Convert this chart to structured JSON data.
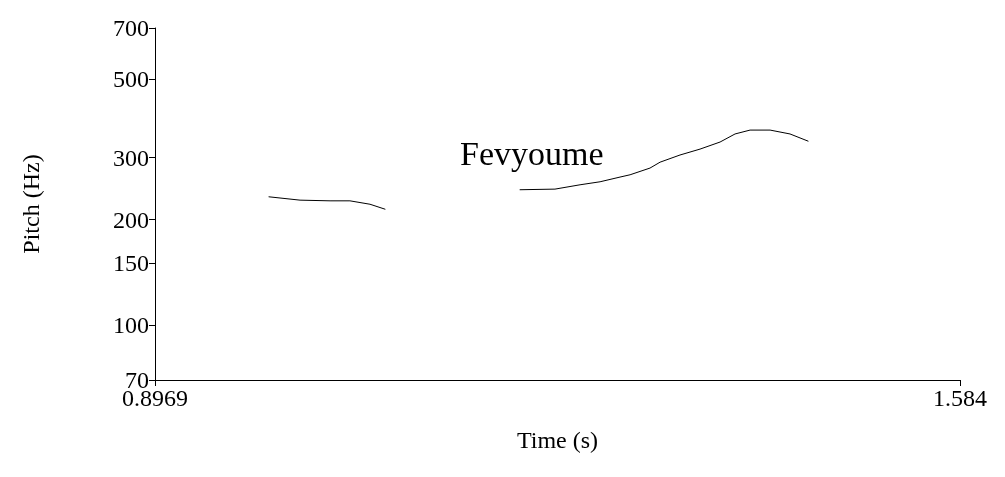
{
  "chart_data": {
    "type": "line",
    "xlabel": "Time (s)",
    "ylabel": "Pitch (Hz)",
    "annotations": [
      "Fevyoume"
    ],
    "xlim": [
      0.8969,
      1.584
    ],
    "xticks": [
      0.8969,
      1.584
    ],
    "ylim": [
      70,
      700
    ],
    "yticks": [
      70,
      100,
      150,
      200,
      300,
      500,
      700
    ],
    "log": "y",
    "grid": false,
    "marker": "none",
    "line_style": "solid",
    "series": [
      {
        "color": "#000000",
        "x": [
          0.9942,
          1.0207,
          1.0463,
          1.0633,
          1.0804,
          1.0932,
          1.1846,
          1.2085,
          1.2383,
          1.2597,
          1.2768,
          1.2938,
          1.3024,
          1.3194,
          1.328,
          1.345,
          1.3621,
          1.3792,
          1.392,
          1.4048,
          1.4219,
          1.4389,
          1.4543
        ],
        "values": [
          232,
          227,
          226,
          226,
          221,
          214,
          null,
          243,
          244,
          251,
          256,
          264,
          268,
          280,
          291,
          305,
          317,
          332,
          350,
          359,
          359,
          350,
          334
        ]
      }
    ]
  }
}
